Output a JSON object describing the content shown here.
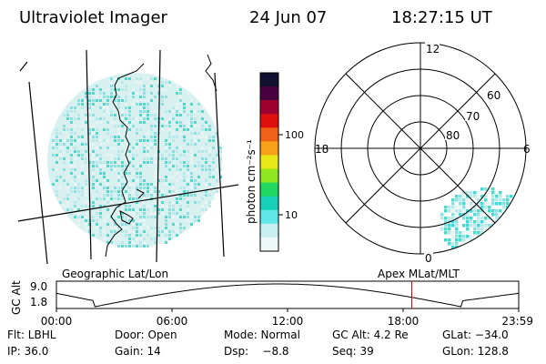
{
  "header": {
    "instrument": "Ultraviolet Imager",
    "date": "24 Jun 07",
    "time": "18:27:15 UT"
  },
  "colorbar": {
    "label": "photon cm⁻²s⁻¹",
    "ticks": [
      "100",
      "10"
    ],
    "colors": [
      "#101030",
      "#4a0040",
      "#a00030",
      "#e01010",
      "#f06018",
      "#f8a018",
      "#e8e818",
      "#90e820",
      "#20d860",
      "#18d0b8",
      "#60e8e8",
      "#c8f0f0",
      "#eef8f8"
    ]
  },
  "polar": {
    "mlt_labels": {
      "top": "12",
      "left": "18",
      "right": "6",
      "bottom": "0"
    },
    "lat_labels": [
      "60",
      "70",
      "80"
    ]
  },
  "geo_label": "Geographic Lat/Lon",
  "apex_label": "Apex MLat/MLT",
  "timeline": {
    "axis_label": "GC Alt",
    "y_ticks": [
      "9.0",
      "1.8"
    ],
    "x_ticks": [
      "00:00",
      "06:00",
      "12:00",
      "18:00",
      "23:59"
    ],
    "marker_hour": 18.45,
    "marker_color": "#dd0000"
  },
  "status": {
    "row1": [
      {
        "key": "flt",
        "text": "Flt: LBHL"
      },
      {
        "key": "door",
        "text": "Door: Open"
      },
      {
        "key": "mode",
        "text": "Mode: Normal"
      },
      {
        "key": "gcalt",
        "text": "GC Alt: 4.2 Re"
      },
      {
        "key": "glat",
        "text": "GLat: −34.0"
      }
    ],
    "row2": [
      {
        "key": "ip",
        "text": "IP: 36.0"
      },
      {
        "key": "gain",
        "text": "Gain: 14"
      },
      {
        "key": "dsp",
        "text": "Dsp:    −8.8"
      },
      {
        "key": "seq",
        "text": "Seq: 39"
      },
      {
        "key": "glon",
        "text": "GLon: 128.8"
      }
    ]
  },
  "image_colors": {
    "disk_base": "#d8f0f0",
    "speckle": [
      "#b8e8e8",
      "#8ae0e0",
      "#50d8c8",
      "#e8f4f4"
    ],
    "cyan": "#40d8d8"
  }
}
